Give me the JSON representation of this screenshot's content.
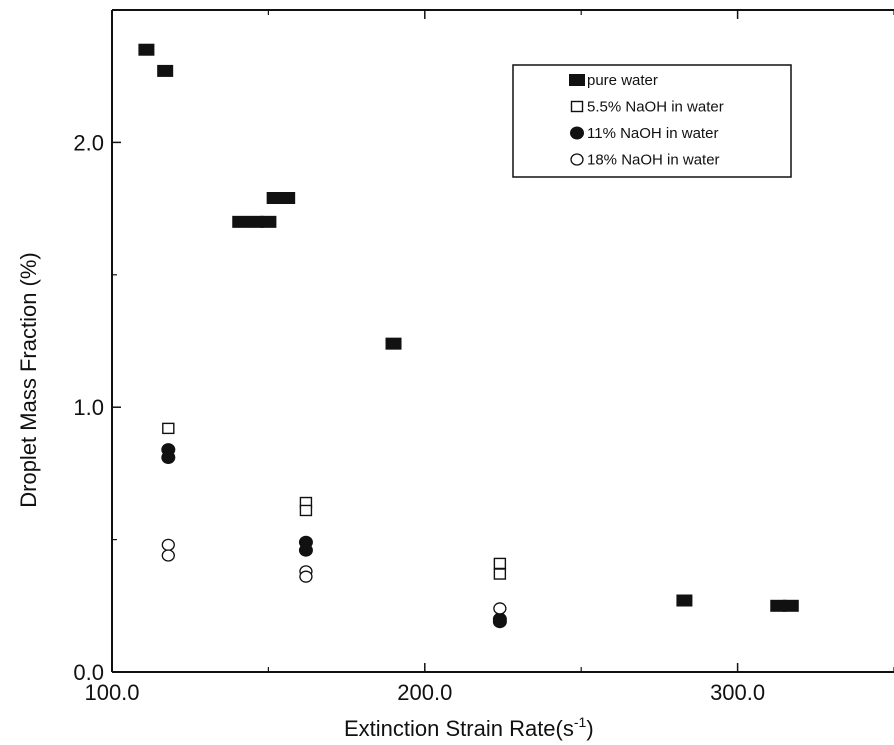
{
  "chart_data": {
    "type": "scatter",
    "title": "",
    "xlabel": "Extinction Strain Rate",
    "xlabel_unit_base": "s",
    "xlabel_unit_exp": "-1",
    "ylabel": "Droplet Mass Fraction (%)",
    "xlim": [
      100,
      350
    ],
    "ylim": [
      0,
      2.5
    ],
    "xticks": [
      100,
      200,
      300
    ],
    "xtick_labels": [
      "100.0",
      "200.0",
      "300.0"
    ],
    "yticks": [
      0,
      1,
      2
    ],
    "ytick_labels": [
      "0.0",
      "1.0",
      "2.0"
    ],
    "grid": false,
    "legend_position": "top-right",
    "series": [
      {
        "name": "pure water",
        "marker": "filled-square",
        "points": [
          [
            111,
            2.35
          ],
          [
            117,
            2.27
          ],
          [
            141,
            1.7
          ],
          [
            146,
            1.7
          ],
          [
            150,
            1.7
          ],
          [
            152,
            1.79
          ],
          [
            156,
            1.79
          ],
          [
            190,
            1.24
          ],
          [
            283,
            0.27
          ],
          [
            313,
            0.25
          ],
          [
            317,
            0.25
          ]
        ]
      },
      {
        "name": "5.5% NaOH in water",
        "marker": "open-square",
        "points": [
          [
            118,
            0.92
          ],
          [
            162,
            0.64
          ],
          [
            162,
            0.61
          ],
          [
            224,
            0.41
          ],
          [
            224,
            0.37
          ]
        ]
      },
      {
        "name": "11% NaOH in water",
        "marker": "filled-circle",
        "points": [
          [
            118,
            0.84
          ],
          [
            118,
            0.81
          ],
          [
            162,
            0.49
          ],
          [
            162,
            0.46
          ],
          [
            224,
            0.2
          ],
          [
            224,
            0.19
          ]
        ]
      },
      {
        "name": "18% NaOH in water",
        "marker": "open-circle",
        "points": [
          [
            118,
            0.48
          ],
          [
            118,
            0.44
          ],
          [
            162,
            0.38
          ],
          [
            162,
            0.36
          ],
          [
            224,
            0.24
          ]
        ]
      }
    ]
  }
}
